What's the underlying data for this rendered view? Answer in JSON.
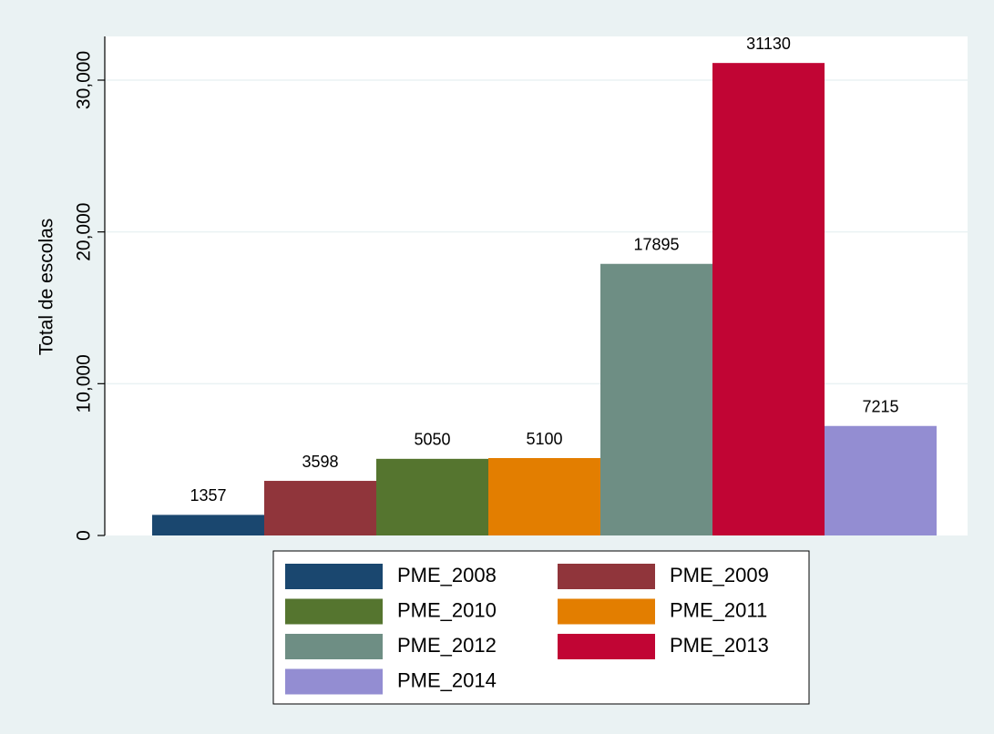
{
  "chart_data": {
    "type": "bar",
    "ylabel": "Total de escolas",
    "series": [
      {
        "name": "PME_2008",
        "color": "#1a476f",
        "values": [
          1357
        ]
      },
      {
        "name": "PME_2009",
        "color": "#90353b",
        "values": [
          3598
        ]
      },
      {
        "name": "PME_2010",
        "color": "#55752f",
        "values": [
          5050
        ]
      },
      {
        "name": "PME_2011",
        "color": "#e37e00",
        "values": [
          5100
        ]
      },
      {
        "name": "PME_2012",
        "color": "#6e8e84",
        "values": [
          17895
        ]
      },
      {
        "name": "PME_2013",
        "color": "#c10534",
        "values": [
          31130
        ]
      },
      {
        "name": "PME_2014",
        "color": "#938dd2",
        "values": [
          7215
        ]
      }
    ],
    "ylim": [
      0,
      32880
    ],
    "yticks": [
      0,
      {
        "value": 10000,
        "label": "10,000"
      },
      {
        "value": 20000,
        "label": "20,000"
      },
      {
        "value": 30000,
        "label": "30,000"
      }
    ],
    "grid": true,
    "legend": "bottom"
  }
}
